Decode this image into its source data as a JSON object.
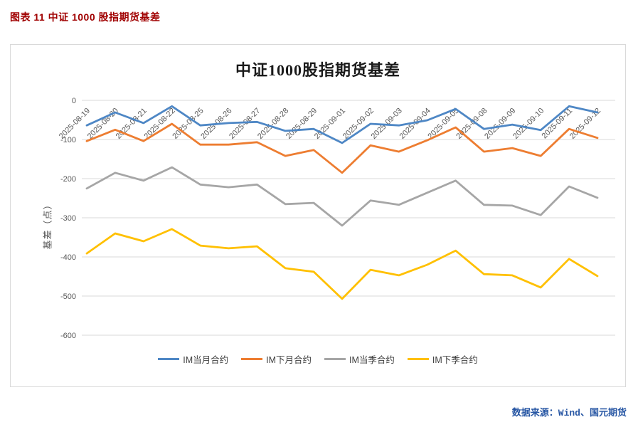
{
  "header": {
    "title": "图表 11 中证 1000 股指期货基差"
  },
  "footer": {
    "source": "数据来源：Wind、国元期货"
  },
  "palette": {
    "caption_color": "#a00000",
    "source_color": "#2857a4",
    "grid_color": "#d9d9d9",
    "tick_color": "#595959"
  },
  "chart_data": {
    "type": "line",
    "title": "中证1000股指期货基差",
    "xlabel": "",
    "ylabel": "基差（点）",
    "ylim": [
      -600,
      0
    ],
    "ytick_interval": 100,
    "grid": true,
    "legend_position": "bottom",
    "categories": [
      "2025-08-19",
      "2025-08-20",
      "2025-08-21",
      "2025-08-22",
      "2025-08-25",
      "2025-08-26",
      "2025-08-27",
      "2025-08-28",
      "2025-08-29",
      "2025-09-01",
      "2025-09-02",
      "2025-09-03",
      "2025-09-04",
      "2025-09-05",
      "2025-09-08",
      "2025-09-09",
      "2025-09-10",
      "2025-09-11",
      "2025-09-12"
    ],
    "series": [
      {
        "name": "IM当月合约",
        "color": "#4e87c5",
        "values": [
          -64,
          -31,
          -58,
          -15,
          -64,
          -58,
          -55,
          -78,
          -73,
          -109,
          -60,
          -64,
          -51,
          -22,
          -73,
          -62,
          -76,
          -15,
          -31
        ]
      },
      {
        "name": "IM下月合约",
        "color": "#ed7d31",
        "values": [
          -104,
          -75,
          -104,
          -60,
          -113,
          -113,
          -107,
          -142,
          -127,
          -185,
          -115,
          -131,
          -102,
          -69,
          -131,
          -122,
          -142,
          -73,
          -96
        ]
      },
      {
        "name": "IM当季合约",
        "color": "#a6a6a6",
        "values": [
          -225,
          -185,
          -205,
          -171,
          -215,
          -222,
          -215,
          -265,
          -262,
          -320,
          -256,
          -267,
          -236,
          -205,
          -267,
          -269,
          -293,
          -220,
          -249
        ]
      },
      {
        "name": "IM下季合约",
        "color": "#ffc000",
        "values": [
          -391,
          -340,
          -360,
          -329,
          -371,
          -378,
          -373,
          -429,
          -438,
          -507,
          -433,
          -447,
          -420,
          -384,
          -444,
          -447,
          -478,
          -405,
          -449
        ]
      }
    ]
  }
}
